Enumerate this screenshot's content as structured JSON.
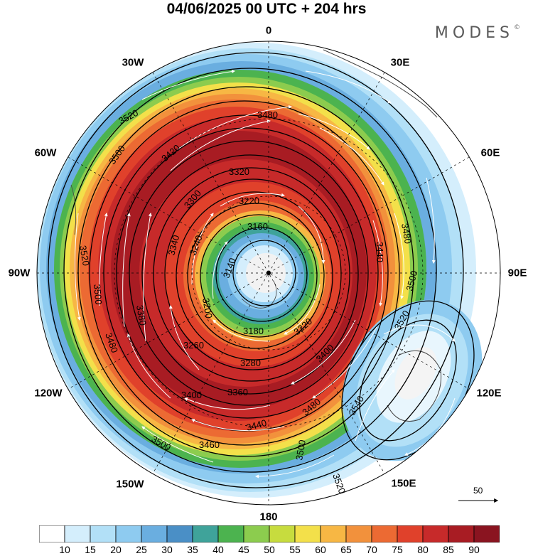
{
  "title": "04/06/2025  00 UTC  + 204 hrs",
  "brand": "MODES",
  "brand_mark": "©",
  "longitude_labels": {
    "n0": "0",
    "n30e": "30E",
    "n60e": "60E",
    "n90e": "90E",
    "n120e": "120E",
    "n150e": "150E",
    "n180": "180",
    "n150w": "150W",
    "n120w": "120W",
    "n90w": "90W",
    "n60w": "60W",
    "n30w": "30W"
  },
  "contour_labels": {
    "c3520a": "3520",
    "c3480a": "3480",
    "c3500a": "3500",
    "c3420a": "3420",
    "c3320a": "3320",
    "c3300a": "3300",
    "c3220a": "3220",
    "c3160a": "3160",
    "c3140a": "3140",
    "c3180a": "3180",
    "c3520b": "3520",
    "c3480b": "3480",
    "c3500b": "3500",
    "c3340a": "3340",
    "c3240a": "3240",
    "c3200a": "3200",
    "c3380a": "3380",
    "c3360a": "3360",
    "c3400a": "3400",
    "c3440a": "3440",
    "c3460a": "3460",
    "c3500c": "3500",
    "c3520c": "3520",
    "c3540a": "3540",
    "c3280a": "3280",
    "c3260a": "3260",
    "c3220b": "3220",
    "c3400b": "3400",
    "c3480c": "3480",
    "c3520d": "3520",
    "c3500d": "3500",
    "c3520e": "3520",
    "c3440b": "3440",
    "c3480d": "3480"
  },
  "vector_scale": "50",
  "colorbar": {
    "labels": [
      "10",
      "15",
      "20",
      "25",
      "30",
      "35",
      "40",
      "45",
      "50",
      "55",
      "60",
      "65",
      "70",
      "75",
      "80",
      "85",
      "90"
    ],
    "colors": [
      "#ffffff",
      "#d4eefc",
      "#b2e0f7",
      "#8ecbf0",
      "#6aaee0",
      "#4a8fc6",
      "#3fa39a",
      "#4cb34f",
      "#8ccc4e",
      "#c7dc3e",
      "#f3e04a",
      "#f7b744",
      "#f2913c",
      "#ec6a33",
      "#e0412b",
      "#c72a2a",
      "#a81c23",
      "#8a1420"
    ]
  },
  "map_features": {
    "projection": "south-polar-stereographic",
    "jet_speed_field": "wind speed shaded (knots)",
    "contours": "geopotential height",
    "streamlines": "white arrows",
    "secondary_low": "closed low near 125E"
  }
}
